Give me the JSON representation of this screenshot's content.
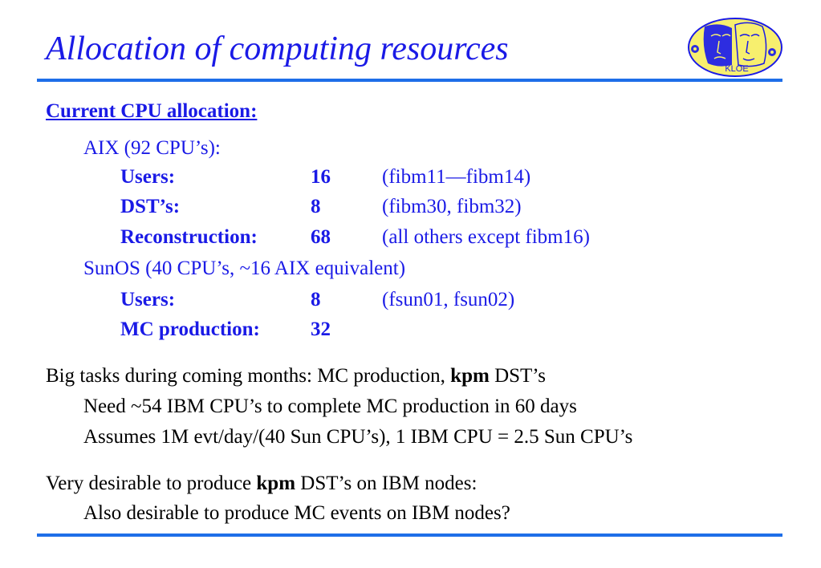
{
  "title": "Allocation of computing resources",
  "logo": {
    "text": "KLOE",
    "icon": "kloe-logo"
  },
  "colors": {
    "title": "#1a1ae6",
    "rule": "#1e6ee8",
    "logo_fill": "#f7ef6e"
  },
  "current": {
    "heading": "Current CPU allocation:",
    "aix": {
      "header": "AIX (92 CPU’s):",
      "rows": [
        {
          "label": "Users:",
          "count": "16",
          "note": "(fibm11—fibm14)"
        },
        {
          "label": "DST’s:",
          "count": "8",
          "note": "(fibm30, fibm32)"
        },
        {
          "label": "Reconstruction:",
          "count": "68",
          "note": "(all others except fibm16)"
        }
      ]
    },
    "sunos": {
      "header": "SunOS (40 CPU’s, ~16 AIX equivalent)",
      "rows": [
        {
          "label": "Users:",
          "count": "8",
          "note": "(fsun01, fsun02)"
        },
        {
          "label": "MC production:",
          "count": "32",
          "note": ""
        }
      ]
    }
  },
  "big_tasks": {
    "line_before": "Big tasks during coming months: MC production, ",
    "bold": "kpm",
    "line_after": " DST’s",
    "sub1": "Need ~54 IBM CPU’s to complete MC production in 60 days",
    "sub2": "Assumes 1M evt/day/(40 Sun CPU’s), 1 IBM CPU = 2.5 Sun CPU’s"
  },
  "desirable": {
    "line_before": "Very desirable to produce ",
    "bold": "kpm",
    "line_after": " DST’s on IBM nodes:",
    "sub1": "Also desirable to produce MC events on IBM nodes?"
  }
}
